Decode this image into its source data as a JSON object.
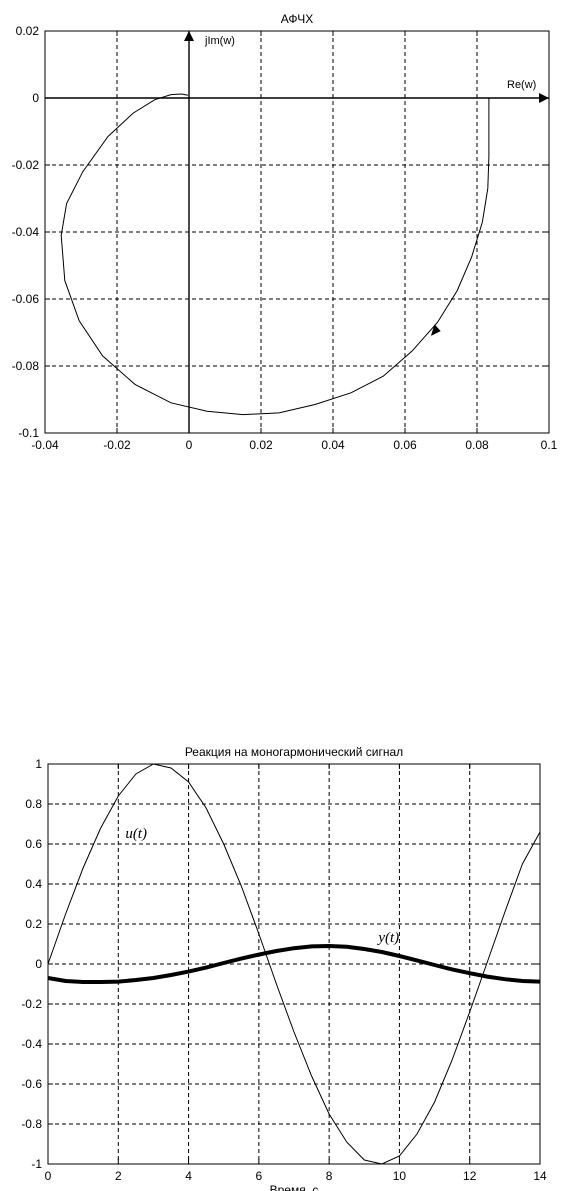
{
  "chart_data": [
    {
      "type": "line",
      "title": "АФЧХ",
      "xlabel": "",
      "ylabel": "",
      "xlim": [
        -0.04,
        0.1
      ],
      "ylim": [
        -0.1,
        0.02
      ],
      "xticks": [
        "-0.04",
        "-0.02",
        "0",
        "0.02",
        "0.04",
        "0.06",
        "0.08",
        "0.1"
      ],
      "yticks": [
        "0.02",
        "0",
        "-0.02",
        "-0.04",
        "-0.06",
        "-0.08",
        "-0.1"
      ],
      "grid": true,
      "annotations": {
        "re_axis": "Re(w)",
        "im_axis": "jIm(w)"
      },
      "series": [
        {
          "x": [
            0.0833,
            0.0833,
            0.083,
            0.0815,
            0.0785,
            0.0745,
            0.069,
            0.062,
            0.054,
            0.045,
            0.035,
            0.025,
            0.015,
            0.005,
            -0.005,
            -0.015,
            -0.024,
            -0.0305,
            -0.0345,
            -0.0355,
            -0.034,
            -0.0295,
            -0.0225,
            -0.0155,
            -0.0095,
            -0.005,
            -0.002,
            -0.0003
          ],
          "y": [
            0.0,
            -0.0175,
            -0.027,
            -0.037,
            -0.0475,
            -0.0575,
            -0.067,
            -0.0755,
            -0.083,
            -0.088,
            -0.0915,
            -0.094,
            -0.0945,
            -0.0935,
            -0.091,
            -0.0855,
            -0.077,
            -0.0665,
            -0.0545,
            -0.041,
            -0.0315,
            -0.022,
            -0.0115,
            -0.0045,
            -0.0005,
            0.001,
            0.0012,
            0.0008
          ]
        }
      ]
    },
    {
      "type": "line",
      "title": "Реакция на моногармонический сигнал",
      "xlabel": "Время, с",
      "ylabel": "",
      "xlim": [
        0,
        14
      ],
      "ylim": [
        -1,
        1
      ],
      "xticks": [
        "0",
        "2",
        "4",
        "6",
        "8",
        "10",
        "12",
        "14"
      ],
      "yticks": [
        "1",
        "0.8",
        "0.6",
        "0.4",
        "0.2",
        "0",
        "-0.2",
        "-0.4",
        "-0.6",
        "-0.8",
        "-1"
      ],
      "grid": true,
      "series": [
        {
          "name": "u(t)",
          "x": [
            0,
            0.5,
            1,
            1.5,
            2,
            2.5,
            3,
            3.5,
            4,
            4.5,
            5,
            5.5,
            6,
            6.5,
            7,
            7.5,
            8,
            8.5,
            9,
            9.5,
            10,
            10.5,
            11,
            11.5,
            12,
            12.5,
            13,
            13.5,
            14
          ],
          "y": [
            0,
            0.25,
            0.48,
            0.68,
            0.84,
            0.95,
            1.0,
            0.98,
            0.91,
            0.78,
            0.6,
            0.39,
            0.15,
            -0.1,
            -0.34,
            -0.56,
            -0.75,
            -0.89,
            -0.98,
            -1.0,
            -0.96,
            -0.85,
            -0.69,
            -0.48,
            -0.24,
            0.01,
            0.26,
            0.5,
            0.66
          ]
        },
        {
          "name": "y(t)",
          "x": [
            0,
            0.5,
            1,
            1.5,
            2,
            2.5,
            3,
            3.5,
            4,
            4.5,
            5,
            5.5,
            6,
            6.5,
            7,
            7.5,
            8,
            8.5,
            9,
            9.5,
            10,
            10.5,
            11,
            11.5,
            12,
            12.5,
            13,
            13.5,
            14
          ],
          "y": [
            -0.07,
            -0.085,
            -0.09,
            -0.09,
            -0.088,
            -0.08,
            -0.07,
            -0.055,
            -0.038,
            -0.018,
            0.005,
            0.027,
            0.047,
            0.065,
            0.079,
            0.088,
            0.09,
            0.086,
            0.075,
            0.06,
            0.04,
            0.018,
            -0.005,
            -0.027,
            -0.046,
            -0.063,
            -0.076,
            -0.085,
            -0.088
          ]
        }
      ],
      "label_positions": [
        {
          "series": "u(t)",
          "x": 2.2,
          "y": 0.63
        },
        {
          "series": "y(t)",
          "x": 9.4,
          "y": 0.11
        }
      ]
    }
  ]
}
